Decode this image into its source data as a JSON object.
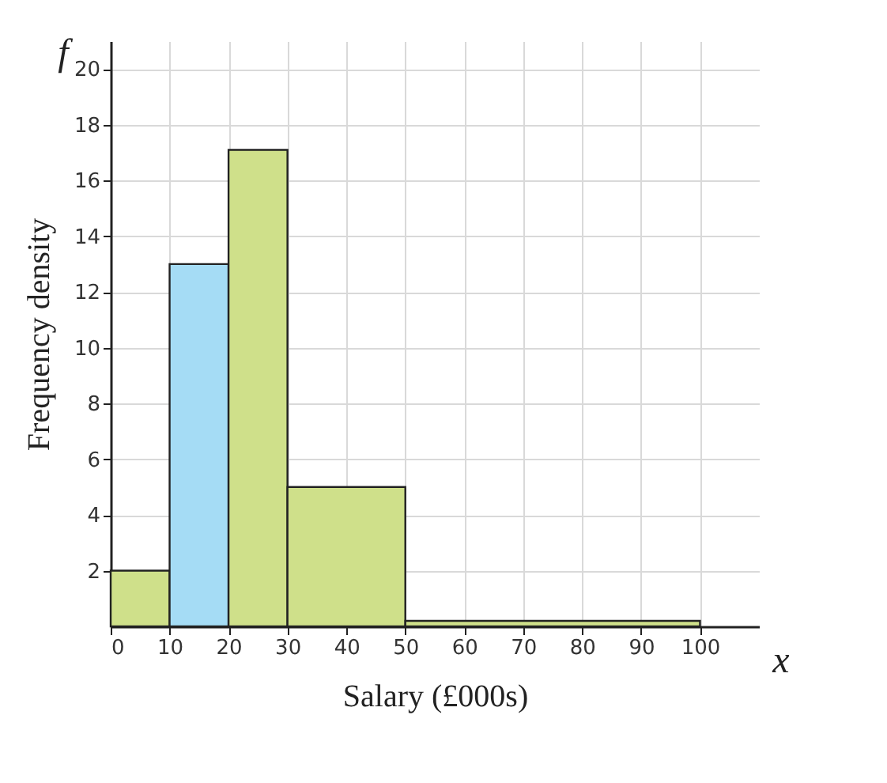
{
  "chart_data": {
    "type": "histogram",
    "xlabel": "Salary (£000s)",
    "ylabel": "Frequency density",
    "bins": [
      0,
      10,
      20,
      30,
      50,
      100
    ],
    "values": [
      2,
      13,
      17.1,
      5,
      0.2
    ],
    "colors": [
      "#cfe08a",
      "#a5dcf5",
      "#cfe08a",
      "#cfe08a",
      "#cfe08a"
    ],
    "xlim": [
      0,
      110
    ],
    "ylim": [
      0,
      21
    ],
    "xticks": [
      0,
      10,
      20,
      30,
      40,
      50,
      60,
      70,
      80,
      90,
      100
    ],
    "yticks": [
      2,
      4,
      6,
      8,
      10,
      12,
      14,
      16,
      18,
      20
    ],
    "grid": true,
    "annotations": [
      "f",
      "x"
    ]
  }
}
